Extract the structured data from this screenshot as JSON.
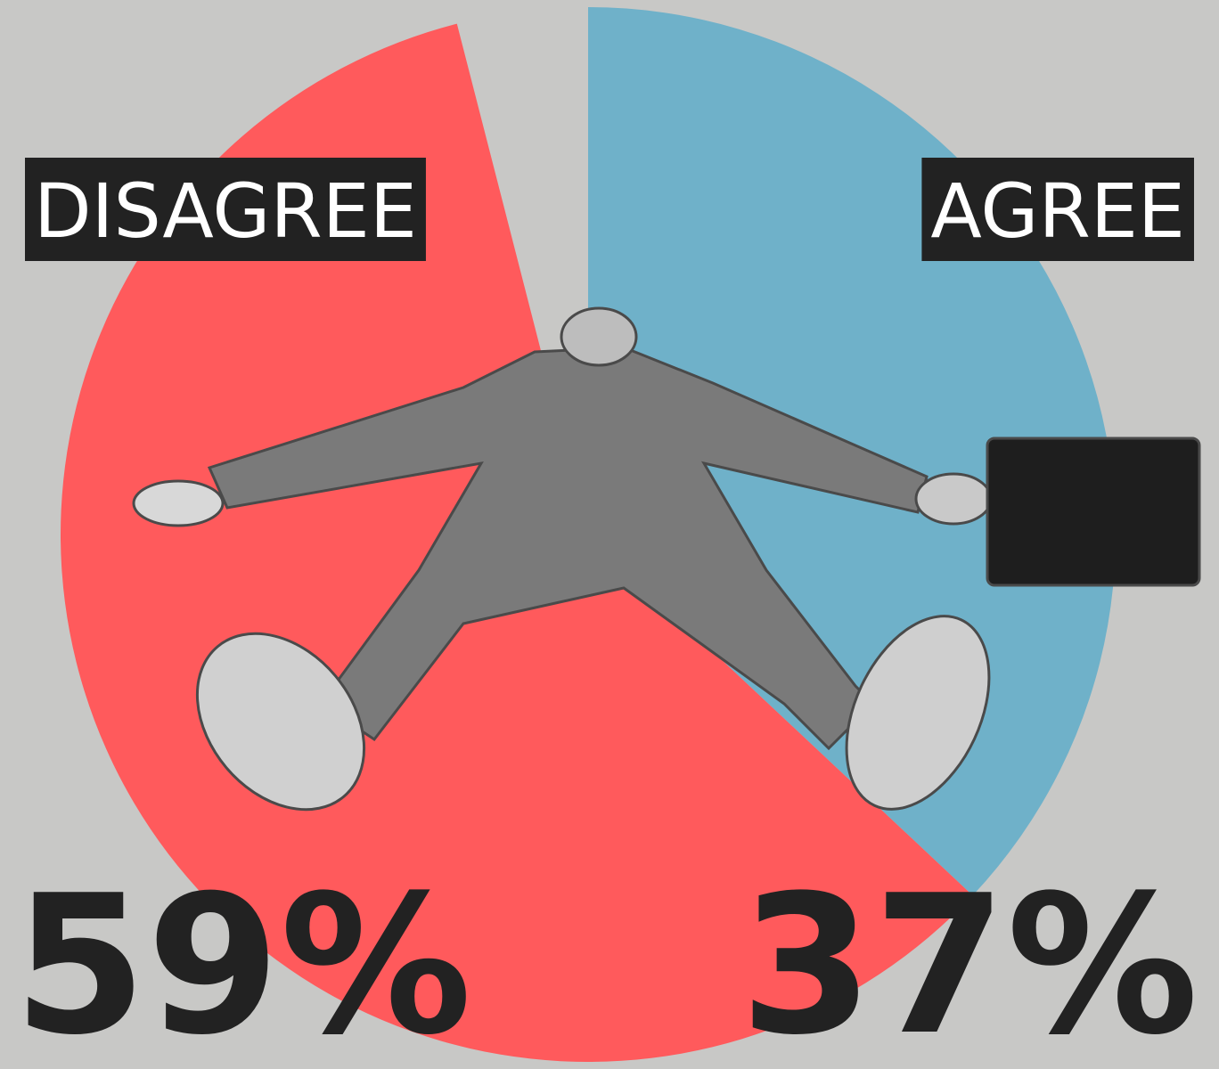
{
  "chart_data": {
    "type": "pie",
    "categories": [
      "AGREE",
      "DISAGREE"
    ],
    "values": [
      37,
      59
    ],
    "value_labels": [
      "37%",
      "59%"
    ],
    "colors": [
      "#6fb1c9",
      "#ff5a5c"
    ]
  }
}
